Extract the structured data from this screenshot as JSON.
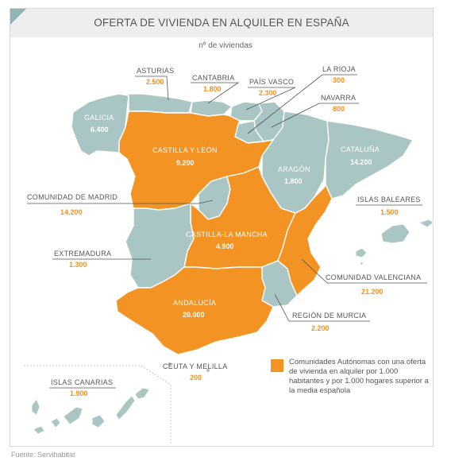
{
  "header": {
    "title": "OFERTA DE VIVIENDA EN ALQUILER EN ESPAÑA",
    "subtitle": "nº de viviendas"
  },
  "colors": {
    "highlight": "#f39323",
    "base": "#a9c6c5",
    "title_bg": "#eeeeee",
    "label_text": "#555555"
  },
  "regions": {
    "galicia": {
      "name": "GALICIA",
      "value": "6.400",
      "highlighted": false
    },
    "asturias": {
      "name": "ASTURIAS",
      "value": "2.500",
      "highlighted": false
    },
    "cantabria": {
      "name": "CANTABRIA",
      "value": "1.800",
      "highlighted": false
    },
    "pais_vasco": {
      "name": "PAÍS VASCO",
      "value": "2.300",
      "highlighted": false
    },
    "la_rioja": {
      "name": "LA RIOJA",
      "value": "300",
      "highlighted": false
    },
    "navarra": {
      "name": "NAVARRA",
      "value": "800",
      "highlighted": false
    },
    "cataluna": {
      "name": "CATALUÑA",
      "value": "14.200",
      "highlighted": false
    },
    "aragon": {
      "name": "ARAGÓN",
      "value": "1.800",
      "highlighted": false
    },
    "castilla_leon": {
      "name": "CASTILLA Y LEÓN",
      "value": "9.200",
      "highlighted": true
    },
    "madrid": {
      "name": "COMUNIDAD DE MADRID",
      "value": "14.200",
      "highlighted": false
    },
    "baleares": {
      "name": "ISLAS BALEARES",
      "value": "1.500",
      "highlighted": false
    },
    "castilla_mancha": {
      "name": "CASTILLA-LA MANCHA",
      "value": "4.900",
      "highlighted": true
    },
    "extremadura": {
      "name": "EXTREMADURA",
      "value": "1.300",
      "highlighted": false
    },
    "valenciana": {
      "name": "COMUNIDAD VALENCIANA",
      "value": "21.200",
      "highlighted": true
    },
    "andalucia": {
      "name": "ANDALUCÍA",
      "value": "20.000",
      "highlighted": true
    },
    "murcia": {
      "name": "REGIÓN DE MURCIA",
      "value": "2.200",
      "highlighted": false
    },
    "canarias": {
      "name": "ISLAS CANARIAS",
      "value": "1.900",
      "highlighted": false
    },
    "ceuta_melilla": {
      "name": "CEUTA Y MELILLA",
      "value": "200",
      "highlighted": false
    }
  },
  "legend": {
    "text": "Comunidades Autónomas con una oferta de vivienda en alquiler por 1.000 habitantes y por 1.000 hogares superior a la media española"
  },
  "source": "Fuente: Servihabitat"
}
